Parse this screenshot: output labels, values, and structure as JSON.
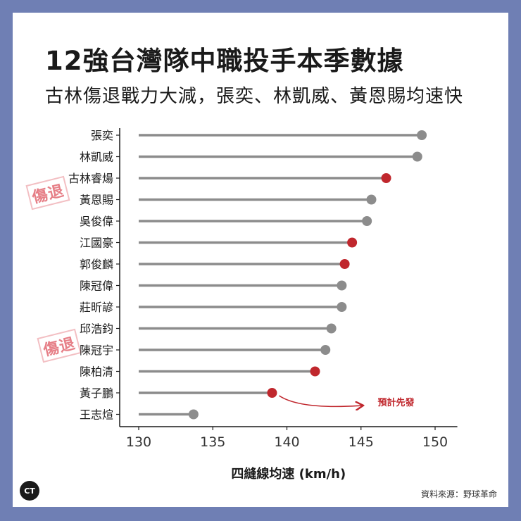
{
  "header": {
    "title": "12強台灣隊中職投手本季數據",
    "subtitle": "古林傷退戰力大減，張奕、林凱威、黃恩賜均速快"
  },
  "stamps": [
    {
      "text": "傷退"
    },
    {
      "text": "傷退"
    }
  ],
  "logo": {
    "text": "CT"
  },
  "source": "資料來源：野球革命",
  "chart_data": {
    "type": "lollipop",
    "xlabel": "四縫線均速 (km/h)",
    "xlim": [
      130,
      151.5
    ],
    "xticks": [
      130,
      135,
      140,
      145,
      150
    ],
    "categories": [
      "張奕",
      "林凱威",
      "古林睿煬",
      "黃恩賜",
      "吳俊偉",
      "江國豪",
      "郭俊麟",
      "陳冠偉",
      "莊昕諺",
      "邱浩鈞",
      "陳冠宇",
      "陳柏清",
      "黃子鵬",
      "王志煊"
    ],
    "values": [
      149.1,
      148.8,
      146.7,
      145.7,
      145.4,
      144.4,
      143.9,
      143.7,
      143.7,
      143.0,
      142.6,
      141.9,
      139.0,
      133.7
    ],
    "highlighted": [
      false,
      false,
      true,
      false,
      false,
      true,
      true,
      false,
      false,
      false,
      false,
      true,
      true,
      false
    ],
    "colors": {
      "normal": "#8c8c8c",
      "highlight": "#c0272d",
      "stem": "#8c8c8c"
    },
    "annotation": {
      "text": "預計先發",
      "target": "黃子鵬"
    }
  }
}
